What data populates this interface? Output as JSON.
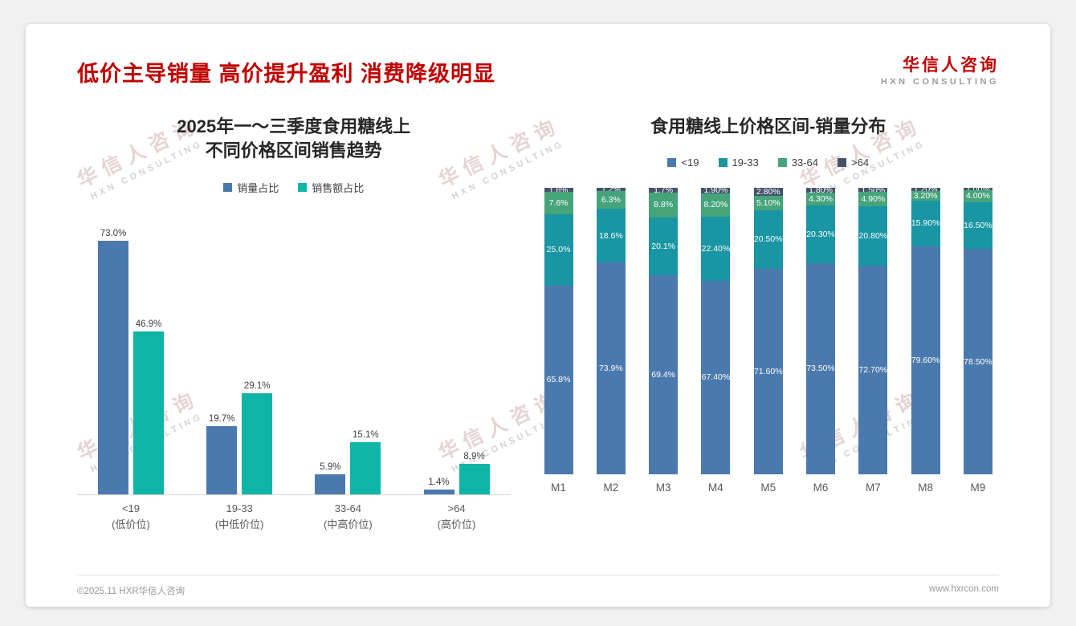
{
  "page": {
    "title": "低价主导销量 高价提升盈利 消费降级明显",
    "logo": {
      "name": "华信人咨询",
      "sub": "HXN CONSULTING"
    },
    "watermark": {
      "line1": "华信人咨询",
      "line2": "HXN CONSULTING"
    },
    "footer": {
      "left": "©2025.11 HXR华信人咨询",
      "right": "www.hxrcon.com"
    }
  },
  "colors": {
    "title_red": "#c00000",
    "steel_blue": "#4a79ad",
    "bright_teal": "#0eb5a6",
    "dark_teal": "#1995a3",
    "green": "#46a47b",
    "dark_slate": "#44546a"
  },
  "chart_data": [
    {
      "type": "bar",
      "stacked": false,
      "title_lines": [
        "2025年一～三季度食用糖线上",
        "不同价格区间销售趋势"
      ],
      "categories": [
        "<19",
        "19-33",
        "33-64",
        ">64"
      ],
      "category_sublabels": [
        "(低价位)",
        "(中低价位)",
        "(中高价位)",
        "(高价位)"
      ],
      "series": [
        {
          "name": "销量占比",
          "color": "#4a79ad",
          "values": [
            73.0,
            19.7,
            5.9,
            1.4
          ],
          "labels": [
            "73.0%",
            "19.7%",
            "5.9%",
            "1.4%"
          ]
        },
        {
          "name": "销售额占比",
          "color": "#0eb5a6",
          "values": [
            46.9,
            29.1,
            15.1,
            8.9
          ],
          "labels": [
            "46.9%",
            "29.1%",
            "15.1%",
            "8.9%"
          ]
        }
      ],
      "ylim": [
        0,
        80
      ],
      "grid": false,
      "legend_position": "top"
    },
    {
      "type": "bar",
      "stacked": true,
      "title": "食用糖线上价格区间-销量分布",
      "categories": [
        "M1",
        "M2",
        "M3",
        "M4",
        "M5",
        "M6",
        "M7",
        "M8",
        "M9"
      ],
      "series": [
        {
          "name": "<19",
          "color": "#4a79ad",
          "values": [
            65.8,
            73.9,
            69.4,
            67.4,
            71.6,
            73.5,
            72.7,
            79.6,
            78.5
          ],
          "labels": [
            "65.8%",
            "73.9%",
            "69.4%",
            "67.40%",
            "71.60%",
            "73.50%",
            "72.70%",
            "79.60%",
            "78.50%"
          ]
        },
        {
          "name": "19-33",
          "color": "#1995a3",
          "values": [
            25.0,
            18.6,
            20.1,
            22.4,
            20.5,
            20.3,
            20.8,
            15.9,
            16.5
          ],
          "labels": [
            "25.0%",
            "18.6%",
            "20.1%",
            "22.40%",
            "20.50%",
            "20.30%",
            "20.80%",
            "15.90%",
            "16.50%"
          ]
        },
        {
          "name": "33-64",
          "color": "#46a47b",
          "values": [
            7.6,
            6.3,
            8.8,
            8.2,
            5.1,
            4.3,
            4.9,
            3.2,
            4.0
          ],
          "labels": [
            "7.6%",
            "6.3%",
            "8.8%",
            "8.20%",
            "5.10%",
            "4.30%",
            "4.90%",
            "3.20%",
            "4.00%"
          ]
        },
        {
          "name": ">64",
          "color": "#44546a",
          "values": [
            1.6,
            1.2,
            1.7,
            1.9,
            2.8,
            1.8,
            1.5,
            1.2,
            1.0
          ],
          "labels": [
            "1.6%",
            "1.2%",
            "1.7%",
            "1.90%",
            "2.80%",
            "1.80%",
            "1.50%",
            "1.20%",
            "1.00%"
          ]
        }
      ],
      "ylim": [
        0,
        100
      ],
      "grid": false,
      "legend_position": "top"
    }
  ]
}
